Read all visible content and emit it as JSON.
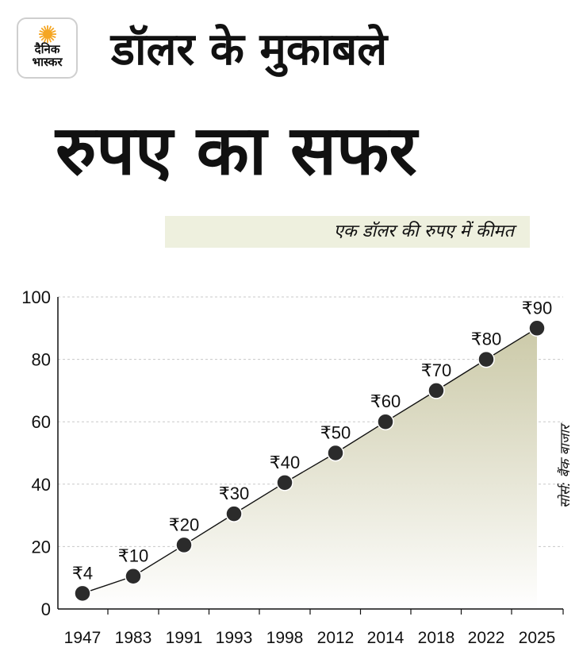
{
  "brand": {
    "line1": "दैनिक",
    "line2": "भास्कर",
    "sun_color": "#f5a623"
  },
  "title_line1": "डॉलर के मुकाबले",
  "title_line2": "रुपए का सफर",
  "subtitle": "एक डॉलर की रुपए में कीमत",
  "source": "सोर्स: बैंक बाजार",
  "colors": {
    "fill": "#c9c7a4",
    "subtitle_bg": "#eef0de",
    "point": "#2b2b2b"
  },
  "chart_data": {
    "type": "line",
    "categories": [
      "1947",
      "1983",
      "1991",
      "1993",
      "1998",
      "2012",
      "2014",
      "2018",
      "2022",
      "2025"
    ],
    "values": [
      4,
      10,
      20,
      30,
      40,
      50,
      60,
      70,
      80,
      90
    ],
    "plot_values": [
      5,
      10.5,
      20.5,
      30.5,
      40.5,
      50,
      60,
      70,
      80,
      90
    ],
    "data_labels": [
      "₹4",
      "₹10",
      "₹20",
      "₹30",
      "₹40",
      "₹50",
      "₹60",
      "₹70",
      "₹80",
      "₹90"
    ],
    "yticks": [
      0,
      20,
      40,
      60,
      80,
      100
    ],
    "ylim": [
      0,
      100
    ],
    "grid": true,
    "area_fill": true
  }
}
